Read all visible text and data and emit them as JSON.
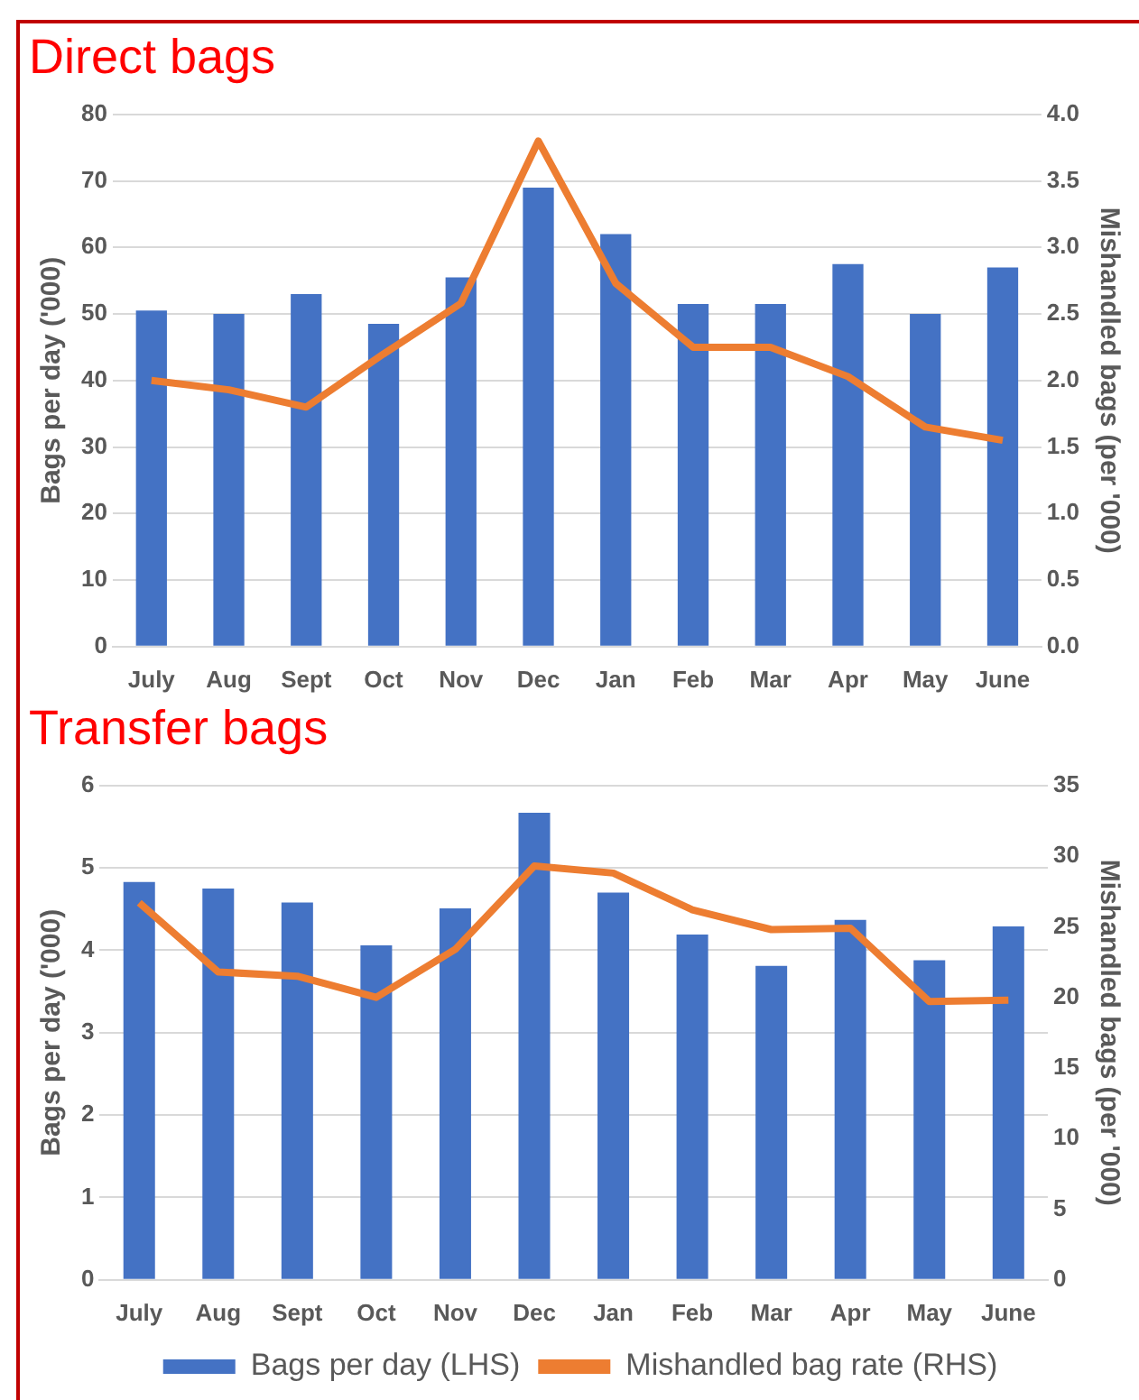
{
  "chart_data": [
    {
      "type": "bar",
      "title": "Direct bags",
      "ylabel": "Bags per day ('000)",
      "y2label": "Mishandled bags (per '000)",
      "categories": [
        "July",
        "Aug",
        "Sept",
        "Oct",
        "Nov",
        "Dec",
        "Jan",
        "Feb",
        "Mar",
        "Apr",
        "May",
        "June"
      ],
      "series": [
        {
          "color": "#4472c4",
          "values": [
            50.5,
            50,
            53,
            48.5,
            55.5,
            69,
            62,
            51.5,
            51.5,
            57.5,
            50,
            57
          ]
        },
        {
          "type": "line",
          "axis": "y2",
          "color": "#ed7d31",
          "marker": "none",
          "values": [
            2.0,
            1.93,
            1.8,
            2.2,
            2.58,
            3.8,
            2.73,
            2.25,
            2.25,
            2.03,
            1.65,
            1.55
          ]
        }
      ],
      "ylim": [
        0,
        80
      ],
      "yticks": [
        0,
        10,
        20,
        30,
        40,
        50,
        60,
        70,
        80
      ],
      "y2lim": [
        0,
        4
      ],
      "y2ticks": [
        {
          "value": 0,
          "label": "0.0"
        },
        {
          "value": 0.5,
          "label": "0.5"
        },
        {
          "value": 1,
          "label": "1.0"
        },
        {
          "value": 1.5,
          "label": "1.5"
        },
        {
          "value": 2,
          "label": "2.0"
        },
        {
          "value": 2.5,
          "label": "2.5"
        },
        {
          "value": 3,
          "label": "3.0"
        },
        {
          "value": 3.5,
          "label": "3.5"
        },
        {
          "value": 4,
          "label": "4.0"
        }
      ],
      "grid": "y",
      "legend": false
    },
    {
      "type": "bar",
      "title": "Transfer bags",
      "ylabel": "Bags per day ('000)",
      "y2label": "Mishandled bags (per '000)",
      "categories": [
        "July",
        "Aug",
        "Sept",
        "Oct",
        "Nov",
        "Dec",
        "Jan",
        "Feb",
        "Mar",
        "Apr",
        "May",
        "June"
      ],
      "series": [
        {
          "name": "Bags per day (LHS)",
          "color": "#4472c4",
          "values": [
            4.83,
            4.75,
            4.58,
            4.06,
            4.51,
            5.67,
            4.7,
            4.19,
            3.81,
            4.37,
            3.88,
            4.29
          ]
        },
        {
          "type": "line",
          "axis": "y2",
          "name": "Mishandled bag rate (RHS)",
          "color": "#ed7d31",
          "marker": "none",
          "values": [
            26.7,
            21.8,
            21.5,
            20.0,
            23.4,
            29.3,
            28.8,
            26.2,
            24.8,
            24.9,
            19.7,
            19.8
          ]
        }
      ],
      "ylim": [
        0,
        6
      ],
      "yticks": [
        0,
        1,
        2,
        3,
        4,
        5,
        6
      ],
      "y2lim": [
        0,
        35
      ],
      "y2ticks": [
        0,
        5,
        10,
        15,
        20,
        25,
        30,
        35
      ],
      "grid": "y",
      "legend": "bottom"
    }
  ]
}
